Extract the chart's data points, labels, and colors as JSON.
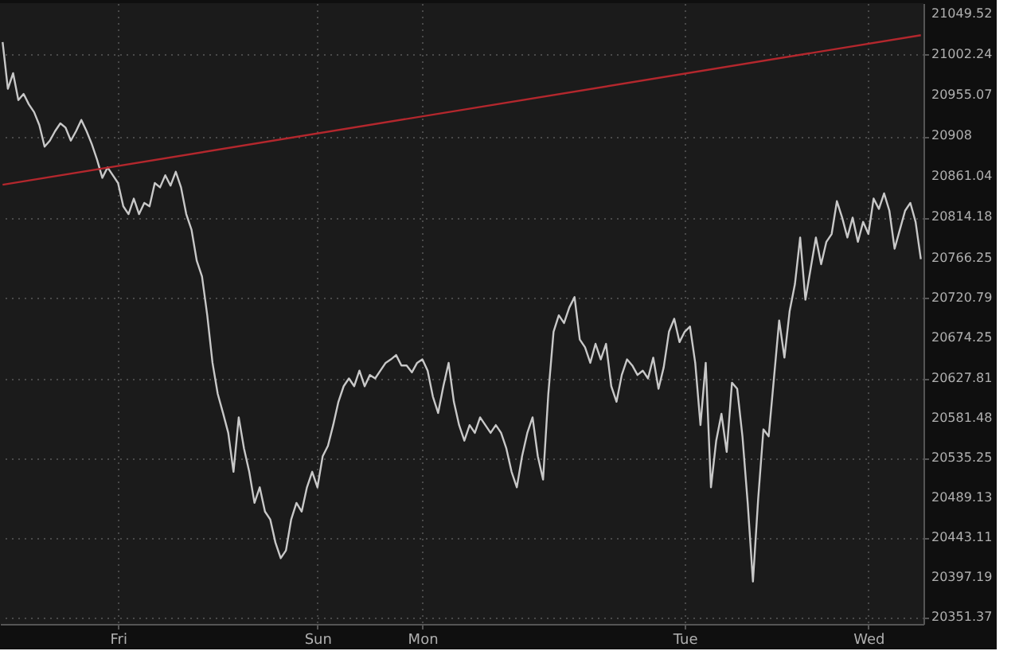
{
  "chart_data": {
    "type": "line",
    "categories": [
      null,
      null,
      null,
      null,
      null,
      null,
      null,
      null,
      null,
      null,
      null,
      null,
      null,
      null,
      null,
      null,
      null,
      null,
      null,
      null,
      null,
      null,
      "Fri",
      null,
      null,
      null,
      null,
      null,
      null,
      null,
      null,
      null,
      null,
      null,
      null,
      null,
      null,
      null,
      null,
      null,
      null,
      null,
      null,
      null,
      null,
      null,
      null,
      null,
      null,
      null,
      null,
      null,
      null,
      null,
      null,
      null,
      null,
      null,
      null,
      null,
      "Sun",
      null,
      null,
      null,
      null,
      null,
      null,
      null,
      null,
      null,
      null,
      null,
      null,
      null,
      null,
      null,
      null,
      null,
      null,
      null,
      "Mon",
      null,
      null,
      null,
      null,
      null,
      null,
      null,
      null,
      null,
      null,
      null,
      null,
      null,
      null,
      null,
      null,
      null,
      null,
      null,
      null,
      null,
      null,
      null,
      null,
      null,
      null,
      null,
      null,
      null,
      null,
      null,
      null,
      null,
      null,
      null,
      null,
      null,
      null,
      null,
      null,
      null,
      null,
      null,
      null,
      null,
      null,
      null,
      null,
      null,
      "Tue",
      null,
      null,
      null,
      null,
      null,
      null,
      null,
      null,
      null,
      null,
      null,
      null,
      null,
      null,
      null,
      null,
      null,
      null,
      null,
      null,
      null,
      null,
      null,
      null,
      null,
      null,
      null,
      null,
      null,
      null,
      null,
      null,
      null,
      null,
      "Wed",
      null,
      null,
      null,
      null,
      null,
      null,
      null,
      null,
      null,
      null
    ],
    "ylim": [
      20344,
      21062
    ],
    "yticks": [
      20351.37,
      20397.19,
      20443.11,
      20489.13,
      20535.25,
      20581.48,
      20627.81,
      20674.25,
      20720.79,
      20766.25,
      20814.18,
      20861.04,
      20908,
      20955.07,
      21002.24,
      21049.52
    ],
    "grid": true,
    "series": [
      {
        "color": "#c8c8c8",
        "values": [
          21017,
          20963,
          20981,
          20950,
          20957,
          20945,
          20936,
          20921,
          20896,
          20903,
          20914,
          20923,
          20918,
          20903,
          20914,
          20927,
          20914,
          20899,
          20881,
          20860,
          20872,
          20863,
          20854,
          20827,
          20818,
          20836,
          20818,
          20831,
          20827,
          20854,
          20849,
          20863,
          20851,
          20867,
          20849,
          20818,
          20800,
          20764,
          20746,
          20701,
          20646,
          20610,
          20588,
          20565,
          20520,
          20583,
          20547,
          20520,
          20484,
          20502,
          20474,
          20465,
          20438,
          20420,
          20429,
          20465,
          20484,
          20474,
          20502,
          20520,
          20502,
          20538,
          20550,
          20574,
          20601,
          20619,
          20628,
          20619,
          20637,
          20619,
          20632,
          20628,
          20637,
          20646,
          20650,
          20655,
          20643,
          20643,
          20635,
          20646,
          20650,
          20637,
          20607,
          20588,
          20619,
          20646,
          20601,
          20574,
          20556,
          20574,
          20565,
          20583,
          20574,
          20565,
          20574,
          20565,
          20547,
          20520,
          20502,
          20538,
          20565,
          20583,
          20538,
          20511,
          20610,
          20682,
          20701,
          20692,
          20710,
          20722,
          20673,
          20664,
          20646,
          20668,
          20650,
          20668,
          20619,
          20601,
          20632,
          20650,
          20643,
          20632,
          20637,
          20628,
          20652,
          20616,
          20641,
          20682,
          20697,
          20670,
          20682,
          20688,
          20646,
          20574,
          20646,
          20502,
          20556,
          20587,
          20543,
          20623,
          20616,
          20561,
          20484,
          20393,
          20489,
          20569,
          20561,
          20628,
          20695,
          20652,
          20706,
          20737,
          20791,
          20719,
          20755,
          20791,
          20760,
          20786,
          20795,
          20833,
          20814,
          20791,
          20814,
          20786,
          20809,
          20795,
          20836,
          20824,
          20842,
          20822,
          20778,
          20800,
          20822,
          20831,
          20809,
          20766
        ]
      },
      {
        "color": "#b3272d",
        "values": [
          20852,
          null,
          null,
          null,
          null,
          null,
          null,
          null,
          null,
          null,
          null,
          null,
          null,
          null,
          null,
          null,
          null,
          null,
          null,
          null,
          null,
          null,
          null,
          null,
          null,
          null,
          null,
          null,
          null,
          null,
          null,
          null,
          null,
          null,
          null,
          null,
          null,
          null,
          null,
          null,
          null,
          null,
          null,
          null,
          null,
          null,
          null,
          null,
          null,
          null,
          null,
          null,
          null,
          null,
          null,
          null,
          null,
          null,
          null,
          null,
          null,
          null,
          null,
          null,
          null,
          null,
          null,
          null,
          null,
          null,
          null,
          null,
          null,
          null,
          null,
          null,
          null,
          null,
          null,
          null,
          null,
          null,
          null,
          null,
          null,
          null,
          null,
          null,
          null,
          null,
          null,
          null,
          null,
          null,
          null,
          null,
          null,
          null,
          null,
          null,
          null,
          null,
          null,
          null,
          null,
          null,
          null,
          null,
          null,
          null,
          null,
          null,
          null,
          null,
          null,
          null,
          null,
          null,
          null,
          null,
          null,
          null,
          null,
          null,
          null,
          null,
          null,
          null,
          null,
          null,
          null,
          null,
          null,
          null,
          null,
          null,
          null,
          null,
          null,
          null,
          null,
          null,
          null,
          null,
          null,
          null,
          null,
          null,
          null,
          null,
          null,
          null,
          null,
          null,
          null,
          null,
          null,
          null,
          null,
          null,
          null,
          null,
          null,
          null,
          null,
          null,
          null,
          null,
          null,
          null,
          null,
          null,
          null,
          null,
          null,
          21025
        ]
      }
    ]
  }
}
